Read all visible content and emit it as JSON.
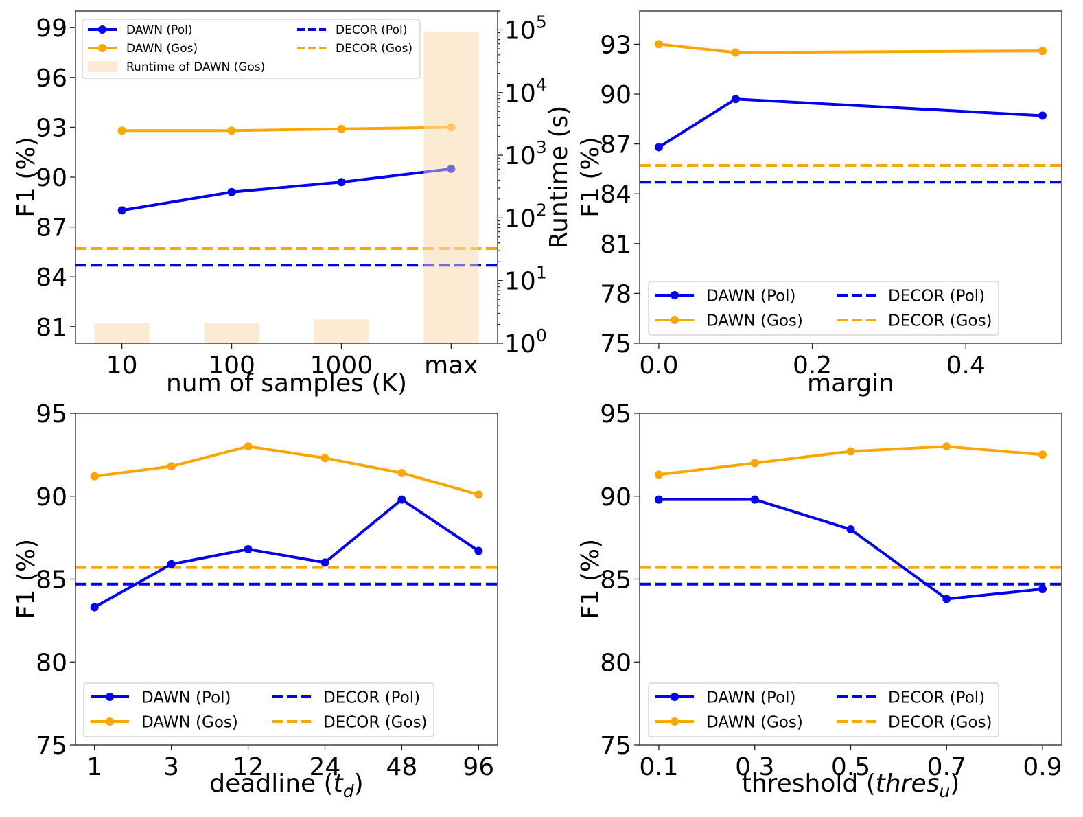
{
  "colors": {
    "pol": "#0000ee",
    "gos": "#ffa500",
    "runtime": "#faebd2"
  },
  "chart_data": [
    {
      "type": "line",
      "id": "samples",
      "title": "",
      "xlabel": "num of samples (K)",
      "ylabel": "F1 (%)",
      "ylabel2": "Runtime (s)",
      "categories": [
        "10",
        "100",
        "1000",
        "max"
      ],
      "ylim": [
        80,
        100
      ],
      "yticks": [
        81,
        84,
        87,
        90,
        93,
        96,
        99
      ],
      "y2log": true,
      "y2lim": [
        1,
        200000
      ],
      "y2ticks": [
        {
          "value": 1,
          "base": "10",
          "exp": "0"
        },
        {
          "value": 10,
          "base": "10",
          "exp": "1"
        },
        {
          "value": 100,
          "base": "10",
          "exp": "2"
        },
        {
          "value": 1000,
          "base": "10",
          "exp": "3"
        },
        {
          "value": 10000,
          "base": "10",
          "exp": "4"
        },
        {
          "value": 100000,
          "base": "10",
          "exp": "5"
        }
      ],
      "series": [
        {
          "name": "DAWN (Pol)",
          "kind": "line",
          "color": "pol",
          "values": [
            88.0,
            89.1,
            89.7,
            90.5
          ]
        },
        {
          "name": "DAWN (Gos)",
          "kind": "line",
          "color": "gos",
          "values": [
            92.8,
            92.8,
            92.9,
            93.0
          ]
        },
        {
          "name": "DECOR (Pol)",
          "kind": "hline",
          "color": "pol",
          "value": 84.7
        },
        {
          "name": "DECOR (Gos)",
          "kind": "hline",
          "color": "gos",
          "value": 85.7
        },
        {
          "name": "Runtime of DAWN (Gos)",
          "kind": "bar",
          "color": "runtime",
          "values": [
            2.1,
            2.1,
            2.4,
            94000
          ]
        }
      ],
      "legend": {
        "position": "top-left",
        "size": "small",
        "columns": [
          [
            "DAWN (Pol)",
            "DAWN (Gos)",
            "Runtime of DAWN (Gos)"
          ],
          [
            "DECOR (Pol)",
            "DECOR (Gos)"
          ]
        ]
      }
    },
    {
      "type": "line",
      "id": "margin",
      "title": "",
      "xlabel": "margin",
      "ylabel": "F1 (%)",
      "x": [
        0.0,
        0.1,
        0.5
      ],
      "xlim": [
        -0.025,
        0.525
      ],
      "xticks": [
        0.0,
        0.2,
        0.4
      ],
      "xticklabels": [
        "0.0",
        "0.2",
        "0.4"
      ],
      "ylim": [
        75,
        95
      ],
      "yticks": [
        75,
        78,
        81,
        84,
        87,
        90,
        93
      ],
      "series": [
        {
          "name": "DAWN (Pol)",
          "kind": "line",
          "color": "pol",
          "values": [
            86.8,
            89.7,
            88.7
          ]
        },
        {
          "name": "DAWN (Gos)",
          "kind": "line",
          "color": "gos",
          "values": [
            93.0,
            92.5,
            92.6
          ]
        },
        {
          "name": "DECOR (Pol)",
          "kind": "hline",
          "color": "pol",
          "value": 84.7
        },
        {
          "name": "DECOR (Gos)",
          "kind": "hline",
          "color": "gos",
          "value": 85.7
        }
      ],
      "legend": {
        "position": "bottom",
        "size": "large",
        "columns": [
          [
            "DAWN (Pol)",
            "DAWN (Gos)"
          ],
          [
            "DECOR (Pol)",
            "DECOR (Gos)"
          ]
        ]
      }
    },
    {
      "type": "line",
      "id": "deadline",
      "title": "",
      "xlabel": "deadline (",
      "xlabel_math": "t",
      "xlabel_sub": "d",
      "xlabel_end": ")",
      "ylabel": "F1 (%)",
      "categories": [
        "1",
        "3",
        "12",
        "24",
        "48",
        "96"
      ],
      "ylim": [
        75,
        95
      ],
      "yticks": [
        75,
        80,
        85,
        90,
        95
      ],
      "series": [
        {
          "name": "DAWN (Pol)",
          "kind": "line",
          "color": "pol",
          "values": [
            83.3,
            85.9,
            86.8,
            86.0,
            89.8,
            86.7
          ]
        },
        {
          "name": "DAWN (Gos)",
          "kind": "line",
          "color": "gos",
          "values": [
            91.2,
            91.8,
            93.0,
            92.3,
            91.4,
            90.1
          ]
        },
        {
          "name": "DECOR (Pol)",
          "kind": "hline",
          "color": "pol",
          "value": 84.7
        },
        {
          "name": "DECOR (Gos)",
          "kind": "hline",
          "color": "gos",
          "value": 85.7
        }
      ],
      "legend": {
        "position": "bottom-left",
        "size": "large",
        "columns": [
          [
            "DAWN (Pol)",
            "DAWN (Gos)"
          ],
          [
            "DECOR (Pol)",
            "DECOR (Gos)"
          ]
        ]
      }
    },
    {
      "type": "line",
      "id": "threshold",
      "title": "",
      "xlabel": "threshold (",
      "xlabel_math": "thres",
      "xlabel_sub": "u",
      "xlabel_end": ")",
      "ylabel": "F1 (%)",
      "x": [
        0.1,
        0.3,
        0.5,
        0.7,
        0.9
      ],
      "xlim": [
        0.06,
        0.94
      ],
      "xticks": [
        0.1,
        0.3,
        0.5,
        0.7,
        0.9
      ],
      "xticklabels": [
        "0.1",
        "0.3",
        "0.5",
        "0.7",
        "0.9"
      ],
      "ylim": [
        75,
        95
      ],
      "yticks": [
        75,
        80,
        85,
        90,
        95
      ],
      "series": [
        {
          "name": "DAWN (Pol)",
          "kind": "line",
          "color": "pol",
          "values": [
            89.8,
            89.8,
            88.0,
            83.8,
            84.4
          ]
        },
        {
          "name": "DAWN (Gos)",
          "kind": "line",
          "color": "gos",
          "values": [
            91.3,
            92.0,
            92.7,
            93.0,
            92.5
          ]
        },
        {
          "name": "DECOR (Pol)",
          "kind": "hline",
          "color": "pol",
          "value": 84.7
        },
        {
          "name": "DECOR (Gos)",
          "kind": "hline",
          "color": "gos",
          "value": 85.7
        }
      ],
      "legend": {
        "position": "bottom",
        "size": "large",
        "columns": [
          [
            "DAWN (Pol)",
            "DAWN (Gos)"
          ],
          [
            "DECOR (Pol)",
            "DECOR (Gos)"
          ]
        ]
      }
    }
  ]
}
